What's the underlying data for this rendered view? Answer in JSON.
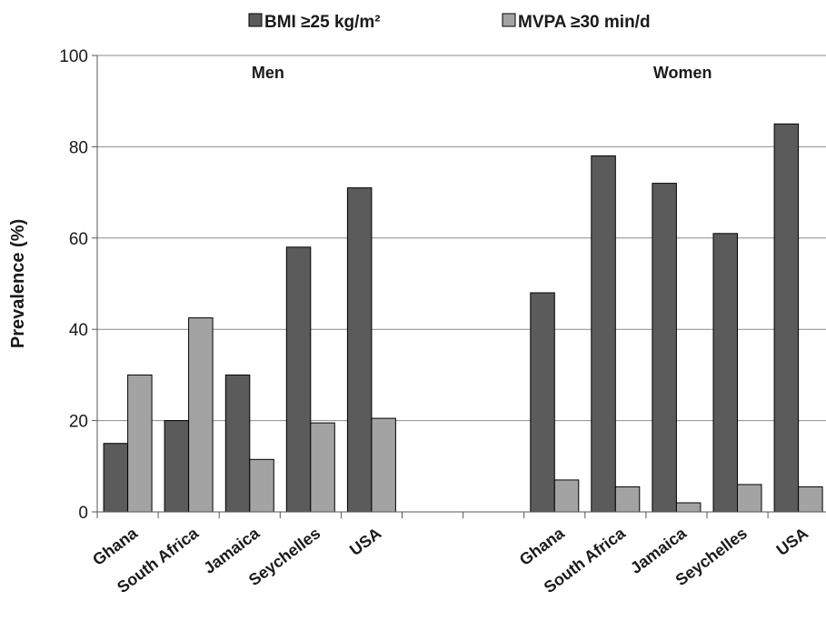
{
  "chart_data": {
    "type": "bar",
    "ylabel": "Prevalence (%)",
    "ylim": [
      0,
      100
    ],
    "yticks": [
      0,
      20,
      40,
      60,
      80,
      100
    ],
    "grid": true,
    "legend_position": "top",
    "groups": [
      {
        "label": "Men",
        "categories": [
          "Ghana",
          "South Africa",
          "Jamaica",
          "Seychelles",
          "USA"
        ]
      },
      {
        "label": "Women",
        "categories": [
          "Ghana",
          "South Africa",
          "Jamaica",
          "Seychelles",
          "USA"
        ]
      }
    ],
    "series": [
      {
        "name": "BMI ≥25 kg/m²",
        "color": "#5b5b5b",
        "values": [
          15,
          20,
          30,
          58,
          71,
          48,
          78,
          72,
          61,
          85
        ]
      },
      {
        "name": "MVPA ≥30 min/d",
        "color": "#a3a3a3",
        "values": [
          30,
          42.5,
          11.5,
          19.5,
          20.5,
          7,
          5.5,
          2,
          6,
          5.5
        ]
      }
    ]
  }
}
